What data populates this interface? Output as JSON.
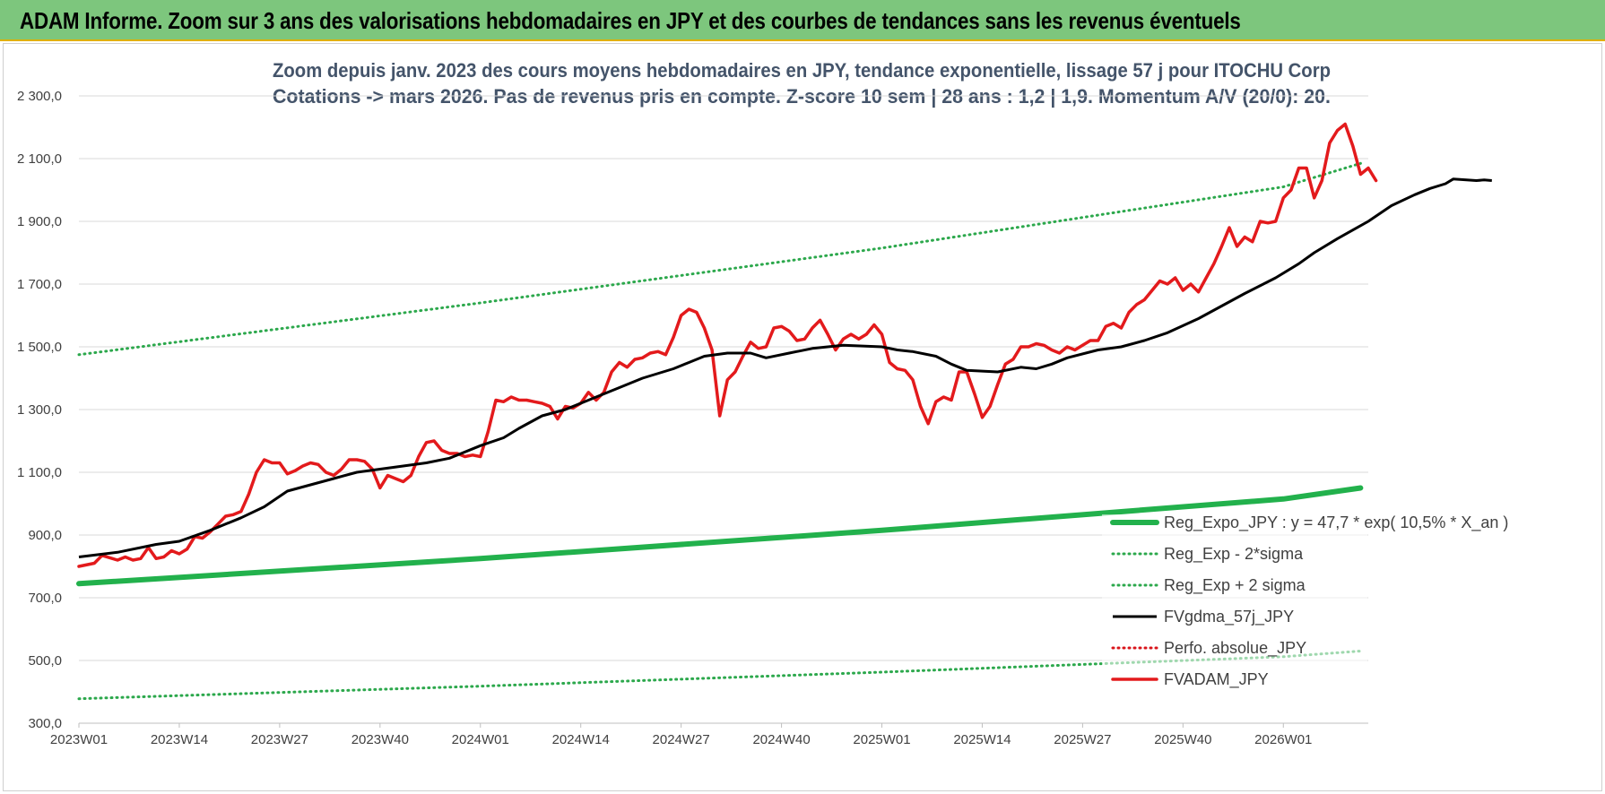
{
  "banner": {
    "title": "ADAM Informe. Zoom sur 3 ans des valorisations hebdomadaires en JPY et des courbes de tendances sans les revenus éventuels"
  },
  "colors": {
    "banner": "#7dc67d",
    "trend_green": "#22b14c",
    "dotted_green": "#2ca84c",
    "dotted_red": "#d9151b",
    "price_red": "#e31a1c",
    "smooth_black": "#000000",
    "title_text": "#44546a"
  },
  "chart_data": {
    "type": "line",
    "title": "Zoom depuis janv. 2023 des cours moyens hebdomadaires en JPY, tendance exponentielle, lissage 57 j pour ITOCHU Corp",
    "subtitle": "Cotations -> mars 2026. Pas de revenus pris en compte. Z-score 10 sem | 28 ans : 1,2 | 1,9. Momentum A/V (20/0): 20.",
    "xlabel": "",
    "ylabel": "",
    "ylim": [
      300,
      2300
    ],
    "yticks": [
      "2 300,0",
      "2 100,0",
      "1 900,0",
      "1 700,0",
      "1 500,0",
      "1 300,0",
      "1 100,0",
      "900,0",
      "700,0",
      "500,0",
      "300,0"
    ],
    "xticks": [
      "2023W01",
      "2023W14",
      "2023W27",
      "2023W40",
      "2024W01",
      "2024W14",
      "2024W27",
      "2024W40",
      "2025W01",
      "2025W14",
      "2025W27",
      "2025W40",
      "2026W01"
    ],
    "grid": "horizontal",
    "legend_position": "bottom-right",
    "week_count": 167,
    "series": [
      {
        "name": "Reg_Expo_JPY : y = 47,7 * exp( 10,5% *  X_an )",
        "style": "thick-solid",
        "color": "#22b14c",
        "points": [
          [
            0,
            745
          ],
          [
            52,
            825
          ],
          [
            104,
            915
          ],
          [
            156,
            1015
          ],
          [
            166,
            1050
          ]
        ]
      },
      {
        "name": "Reg_Exp - 2*sigma",
        "style": "dotted",
        "color": "#2ca84c",
        "points": [
          [
            0,
            378
          ],
          [
            52,
            418
          ],
          [
            104,
            463
          ],
          [
            156,
            512
          ],
          [
            166,
            530
          ]
        ]
      },
      {
        "name": "Reg_Exp + 2 sigma",
        "style": "dotted",
        "color": "#2ca84c",
        "points": [
          [
            0,
            1475
          ],
          [
            52,
            1640
          ],
          [
            104,
            1815
          ],
          [
            156,
            2010
          ],
          [
            166,
            2085
          ]
        ]
      },
      {
        "name": "FVgdma_57j_JPY",
        "style": "solid",
        "color": "#000000",
        "points": [
          [
            0,
            830
          ],
          [
            5,
            845
          ],
          [
            10,
            870
          ],
          [
            13,
            880
          ],
          [
            17,
            915
          ],
          [
            21,
            955
          ],
          [
            24,
            990
          ],
          [
            27,
            1040
          ],
          [
            30,
            1060
          ],
          [
            33,
            1080
          ],
          [
            36,
            1100
          ],
          [
            39,
            1110
          ],
          [
            42,
            1120
          ],
          [
            45,
            1130
          ],
          [
            48,
            1145
          ],
          [
            52,
            1185
          ],
          [
            55,
            1210
          ],
          [
            57,
            1240
          ],
          [
            60,
            1280
          ],
          [
            63,
            1300
          ],
          [
            66,
            1330
          ],
          [
            70,
            1370
          ],
          [
            73,
            1400
          ],
          [
            77,
            1430
          ],
          [
            79,
            1450
          ],
          [
            81,
            1470
          ],
          [
            84,
            1480
          ],
          [
            87,
            1480
          ],
          [
            89,
            1465
          ],
          [
            92,
            1480
          ],
          [
            95,
            1495
          ],
          [
            99,
            1505
          ],
          [
            104,
            1500
          ],
          [
            106,
            1490
          ],
          [
            108,
            1485
          ],
          [
            111,
            1470
          ],
          [
            113,
            1445
          ],
          [
            115,
            1425
          ],
          [
            119,
            1420
          ],
          [
            122,
            1435
          ],
          [
            124,
            1430
          ],
          [
            126,
            1445
          ],
          [
            128,
            1465
          ],
          [
            132,
            1490
          ],
          [
            135,
            1500
          ],
          [
            138,
            1520
          ],
          [
            141,
            1545
          ],
          [
            145,
            1590
          ],
          [
            148,
            1630
          ],
          [
            151,
            1670
          ],
          [
            155,
            1720
          ],
          [
            158,
            1765
          ],
          [
            160,
            1800
          ],
          [
            163,
            1845
          ],
          [
            167,
            1900
          ],
          [
            170,
            1950
          ],
          [
            173,
            1985
          ],
          [
            175,
            2005
          ],
          [
            177,
            2020
          ],
          [
            178,
            2035
          ],
          [
            181,
            2030
          ],
          [
            182,
            2032
          ],
          [
            183,
            2030
          ]
        ]
      },
      {
        "name": "Perfo. absolue_JPY",
        "style": "dotted",
        "color": "#d9151b",
        "points": []
      },
      {
        "name": "FVADAM_JPY",
        "style": "thick-solid",
        "color": "#e31a1c",
        "points": [
          [
            0,
            800
          ],
          [
            2,
            810
          ],
          [
            3,
            835
          ],
          [
            5,
            820
          ],
          [
            6,
            830
          ],
          [
            7,
            820
          ],
          [
            8,
            825
          ],
          [
            9,
            860
          ],
          [
            10,
            825
          ],
          [
            11,
            830
          ],
          [
            12,
            850
          ],
          [
            13,
            840
          ],
          [
            14,
            855
          ],
          [
            15,
            895
          ],
          [
            16,
            890
          ],
          [
            17,
            910
          ],
          [
            18,
            935
          ],
          [
            19,
            960
          ],
          [
            20,
            965
          ],
          [
            21,
            975
          ],
          [
            22,
            1030
          ],
          [
            23,
            1100
          ],
          [
            24,
            1140
          ],
          [
            25,
            1130
          ],
          [
            26,
            1130
          ],
          [
            27,
            1095
          ],
          [
            28,
            1105
          ],
          [
            29,
            1120
          ],
          [
            30,
            1130
          ],
          [
            31,
            1125
          ],
          [
            32,
            1100
          ],
          [
            33,
            1090
          ],
          [
            34,
            1110
          ],
          [
            35,
            1140
          ],
          [
            36,
            1140
          ],
          [
            37,
            1135
          ],
          [
            38,
            1110
          ],
          [
            39,
            1050
          ],
          [
            40,
            1090
          ],
          [
            41,
            1080
          ],
          [
            42,
            1070
          ],
          [
            43,
            1090
          ],
          [
            44,
            1150
          ],
          [
            45,
            1195
          ],
          [
            46,
            1200
          ],
          [
            47,
            1170
          ],
          [
            48,
            1160
          ],
          [
            49,
            1160
          ],
          [
            50,
            1150
          ],
          [
            51,
            1155
          ],
          [
            52,
            1150
          ],
          [
            53,
            1230
          ],
          [
            54,
            1330
          ],
          [
            55,
            1325
          ],
          [
            56,
            1340
          ],
          [
            57,
            1330
          ],
          [
            58,
            1330
          ],
          [
            59,
            1325
          ],
          [
            60,
            1320
          ],
          [
            61,
            1310
          ],
          [
            62,
            1270
          ],
          [
            63,
            1310
          ],
          [
            64,
            1305
          ],
          [
            65,
            1320
          ],
          [
            66,
            1355
          ],
          [
            67,
            1330
          ],
          [
            68,
            1355
          ],
          [
            69,
            1420
          ],
          [
            70,
            1450
          ],
          [
            71,
            1435
          ],
          [
            72,
            1460
          ],
          [
            73,
            1465
          ],
          [
            74,
            1480
          ],
          [
            75,
            1485
          ],
          [
            76,
            1475
          ],
          [
            77,
            1530
          ],
          [
            78,
            1600
          ],
          [
            79,
            1620
          ],
          [
            80,
            1610
          ],
          [
            81,
            1560
          ],
          [
            82,
            1490
          ],
          [
            83,
            1280
          ],
          [
            84,
            1395
          ],
          [
            85,
            1420
          ],
          [
            86,
            1470
          ],
          [
            87,
            1515
          ],
          [
            88,
            1495
          ],
          [
            89,
            1500
          ],
          [
            90,
            1560
          ],
          [
            91,
            1565
          ],
          [
            92,
            1550
          ],
          [
            93,
            1520
          ],
          [
            94,
            1525
          ],
          [
            95,
            1560
          ],
          [
            96,
            1585
          ],
          [
            97,
            1540
          ],
          [
            98,
            1490
          ],
          [
            99,
            1525
          ],
          [
            100,
            1540
          ],
          [
            101,
            1525
          ],
          [
            102,
            1540
          ],
          [
            103,
            1570
          ],
          [
            104,
            1540
          ],
          [
            105,
            1450
          ],
          [
            106,
            1430
          ],
          [
            107,
            1425
          ],
          [
            108,
            1395
          ],
          [
            109,
            1310
          ],
          [
            110,
            1255
          ],
          [
            111,
            1325
          ],
          [
            112,
            1340
          ],
          [
            113,
            1330
          ],
          [
            114,
            1420
          ],
          [
            115,
            1420
          ],
          [
            116,
            1350
          ],
          [
            117,
            1275
          ],
          [
            118,
            1310
          ],
          [
            119,
            1380
          ],
          [
            120,
            1445
          ],
          [
            121,
            1460
          ],
          [
            122,
            1500
          ],
          [
            123,
            1500
          ],
          [
            124,
            1510
          ],
          [
            125,
            1505
          ],
          [
            126,
            1490
          ],
          [
            127,
            1480
          ],
          [
            128,
            1500
          ],
          [
            129,
            1490
          ],
          [
            130,
            1505
          ],
          [
            131,
            1520
          ],
          [
            132,
            1520
          ],
          [
            133,
            1565
          ],
          [
            134,
            1575
          ],
          [
            135,
            1560
          ],
          [
            136,
            1610
          ],
          [
            137,
            1635
          ],
          [
            138,
            1650
          ],
          [
            139,
            1680
          ],
          [
            140,
            1710
          ],
          [
            141,
            1700
          ],
          [
            142,
            1720
          ],
          [
            143,
            1680
          ],
          [
            144,
            1700
          ],
          [
            145,
            1675
          ],
          [
            146,
            1720
          ],
          [
            147,
            1765
          ],
          [
            148,
            1820
          ],
          [
            149,
            1880
          ],
          [
            150,
            1820
          ],
          [
            151,
            1850
          ],
          [
            152,
            1835
          ],
          [
            153,
            1900
          ],
          [
            154,
            1895
          ],
          [
            155,
            1900
          ],
          [
            156,
            1975
          ],
          [
            157,
            2000
          ],
          [
            158,
            2070
          ],
          [
            159,
            2070
          ],
          [
            160,
            1975
          ],
          [
            161,
            2030
          ],
          [
            162,
            2150
          ],
          [
            163,
            2190
          ],
          [
            164,
            2210
          ],
          [
            165,
            2140
          ],
          [
            166,
            2050
          ],
          [
            167,
            2070
          ],
          [
            168,
            2030
          ]
        ]
      }
    ]
  }
}
